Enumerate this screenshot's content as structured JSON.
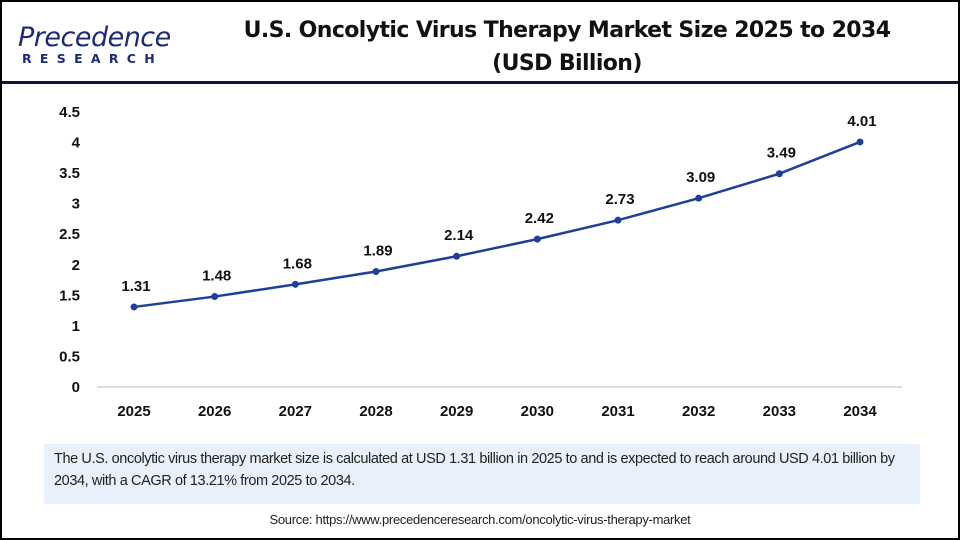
{
  "logo": {
    "main": "Precedence",
    "sub": "RESEARCH"
  },
  "title_line1": "U.S. Oncolytic Virus Therapy Market Size 2025 to 2034",
  "title_line2": "(USD Billion)",
  "chart_data": {
    "type": "line",
    "title": "U.S. Oncolytic Virus Therapy Market Size 2025 to 2034 (USD Billion)",
    "categories": [
      "2025",
      "2026",
      "2027",
      "2028",
      "2029",
      "2030",
      "2031",
      "2032",
      "2033",
      "2034"
    ],
    "values": [
      1.31,
      1.48,
      1.68,
      1.89,
      2.14,
      2.42,
      2.73,
      3.09,
      3.49,
      4.01
    ],
    "data_labels": [
      "1.31",
      "1.48",
      "1.68",
      "1.89",
      "2.14",
      "2.42",
      "2.73",
      "3.09",
      "3.49",
      "4.01"
    ],
    "yticks": [
      "0",
      "0.5",
      "1",
      "1.5",
      "2",
      "2.5",
      "3",
      "3.5",
      "4",
      "4.5"
    ],
    "ylim": [
      0,
      4.5
    ],
    "grid": false,
    "line_color": "#1f3f99"
  },
  "summary": "The U.S. oncolytic virus therapy market size is calculated at USD 1.31 billion in 2025 to and is expected to reach around USD 4.01 billion by 2034, with a CAGR of 13.21% from 2025 to 2034.",
  "source": "Source: https://www.precedenceresearch.com/oncolytic-virus-therapy-market"
}
